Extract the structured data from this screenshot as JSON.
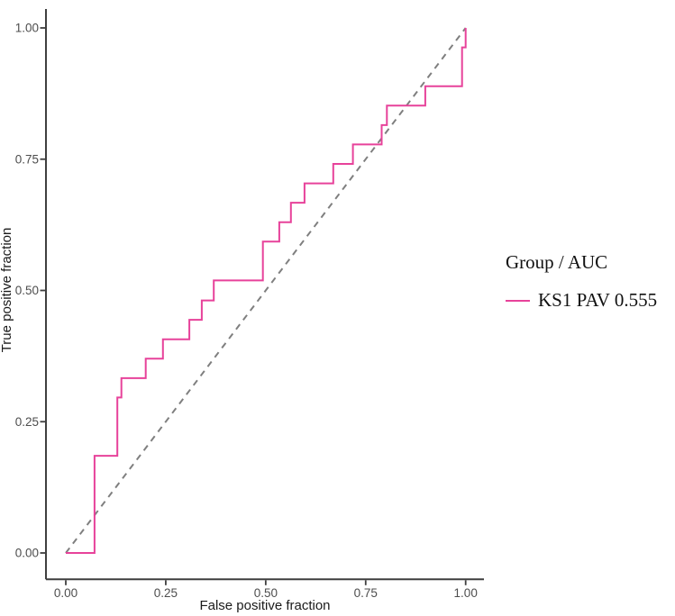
{
  "figure": {
    "background": "#ffffff"
  },
  "chart_data": {
    "type": "line",
    "subtype": "roc-step-curve",
    "title": "",
    "xlabel": "False positive fraction",
    "ylabel": "True positive fraction",
    "xlim": [
      0,
      1
    ],
    "ylim": [
      0,
      1
    ],
    "xticks": [
      0,
      0.25,
      0.5,
      0.75,
      1
    ],
    "xtick_labels": [
      "0.00",
      "0.25",
      "0.50",
      "0.75",
      "1.00"
    ],
    "yticks": [
      0,
      0.25,
      0.5,
      0.75,
      1
    ],
    "ytick_labels": [
      "0.00",
      "0.25",
      "0.50",
      "0.75",
      "1.00"
    ],
    "grid": false,
    "legend": {
      "title": "Group / AUC",
      "position": "right",
      "entries": [
        {
          "label": "KS1 PAV 0.555",
          "color": "#e7429a"
        }
      ]
    },
    "series": [
      {
        "name": "KS1 PAV",
        "auc": 0.555,
        "color": "#e7429a",
        "stroke_width": 2,
        "points": [
          [
            0.0,
            0.0
          ],
          [
            0.072,
            0.0
          ],
          [
            0.072,
            0.185
          ],
          [
            0.129,
            0.185
          ],
          [
            0.129,
            0.296
          ],
          [
            0.139,
            0.296
          ],
          [
            0.139,
            0.333
          ],
          [
            0.2,
            0.333
          ],
          [
            0.2,
            0.37
          ],
          [
            0.243,
            0.37
          ],
          [
            0.243,
            0.407
          ],
          [
            0.309,
            0.407
          ],
          [
            0.309,
            0.444
          ],
          [
            0.34,
            0.444
          ],
          [
            0.34,
            0.481
          ],
          [
            0.37,
            0.481
          ],
          [
            0.37,
            0.519
          ],
          [
            0.493,
            0.519
          ],
          [
            0.493,
            0.593
          ],
          [
            0.534,
            0.593
          ],
          [
            0.534,
            0.63
          ],
          [
            0.563,
            0.63
          ],
          [
            0.563,
            0.667
          ],
          [
            0.597,
            0.667
          ],
          [
            0.597,
            0.704
          ],
          [
            0.669,
            0.704
          ],
          [
            0.669,
            0.741
          ],
          [
            0.718,
            0.741
          ],
          [
            0.718,
            0.778
          ],
          [
            0.79,
            0.778
          ],
          [
            0.79,
            0.815
          ],
          [
            0.803,
            0.815
          ],
          [
            0.803,
            0.852
          ],
          [
            0.899,
            0.852
          ],
          [
            0.899,
            0.889
          ],
          [
            0.991,
            0.889
          ],
          [
            0.991,
            0.963
          ],
          [
            1.0,
            0.963
          ],
          [
            1.0,
            1.0
          ]
        ]
      }
    ],
    "reference_line": {
      "from": [
        0,
        0
      ],
      "to": [
        1,
        1
      ],
      "color": "#7f7f7f",
      "dash": "7 6"
    }
  },
  "colors": {
    "axis_line": "#3f3f3f",
    "tick_label": "#4d4d4d",
    "axis_title": "#1a1a1a",
    "curve": "#e7429a",
    "diagonal": "#7f7f7f",
    "background": "#ffffff"
  }
}
